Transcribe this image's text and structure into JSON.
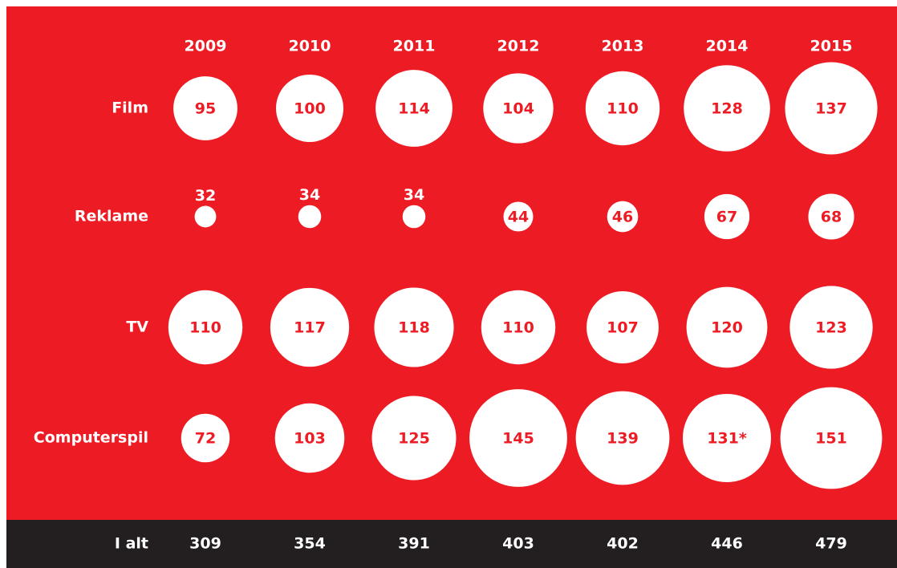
{
  "chart_data": {
    "type": "bubble_grid",
    "categories": [
      "2009",
      "2010",
      "2011",
      "2012",
      "2013",
      "2014",
      "2015"
    ],
    "series": [
      {
        "name": "Film",
        "color": "#ffffff",
        "values": [
          95,
          100,
          114,
          104,
          110,
          128,
          137
        ]
      },
      {
        "name": "Reklame",
        "color": "#ffffff",
        "values": [
          32,
          34,
          34,
          44,
          46,
          67,
          68
        ]
      },
      {
        "name": "TV",
        "color": "#ffffff",
        "values": [
          110,
          117,
          118,
          110,
          107,
          120,
          123
        ]
      },
      {
        "name": "Computerspil",
        "color": "#ffffff",
        "values": [
          72,
          103,
          125,
          145,
          139,
          131,
          151
        ],
        "value_labels": [
          "72",
          "103",
          "125",
          "145",
          "139",
          "131*",
          "151"
        ]
      }
    ],
    "total_label": "I alt",
    "totals": [
      309,
      354,
      391,
      403,
      402,
      446,
      479
    ]
  }
}
